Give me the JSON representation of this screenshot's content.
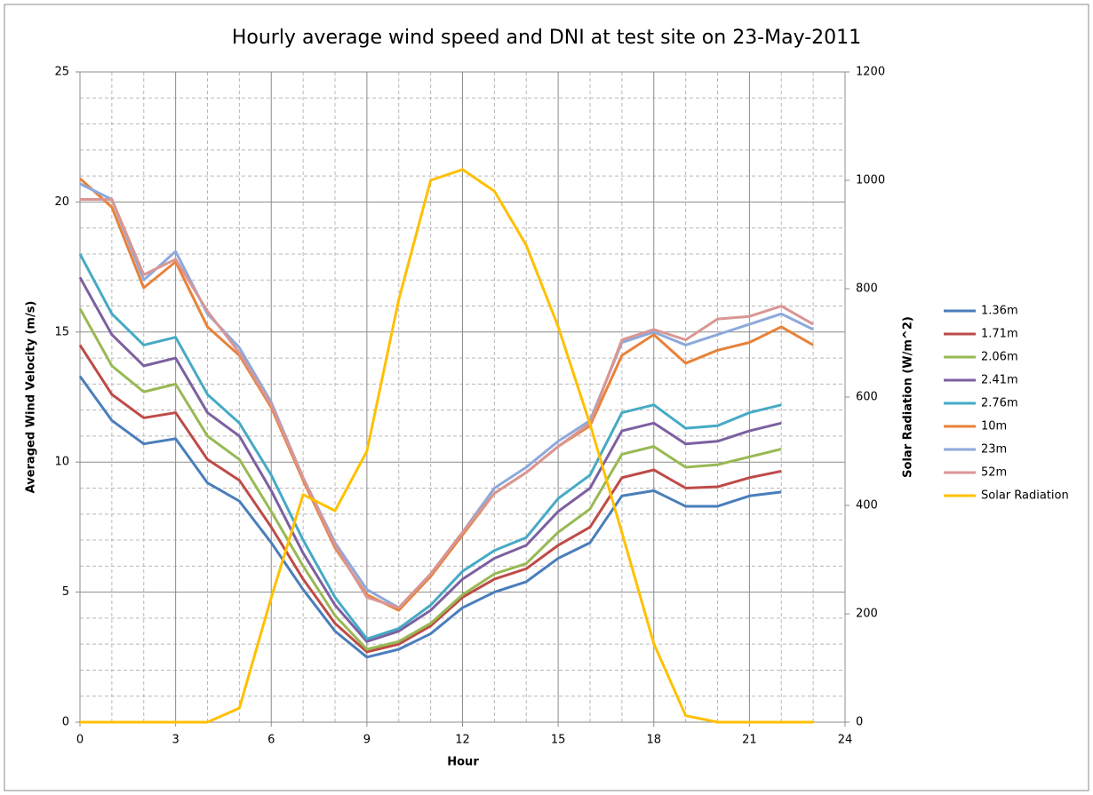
{
  "chart_data": {
    "type": "line",
    "title": "Hourly average wind speed and DNI at test site on 23-May-2011",
    "x_label": "Hour",
    "y_label": "Averaged Wind Velocity (m/s)",
    "y2_label": "Solar Radiation (W/m^2)",
    "x": [
      0,
      1,
      2,
      3,
      4,
      5,
      6,
      7,
      8,
      9,
      10,
      11,
      12,
      13,
      14,
      15,
      16,
      17,
      18,
      19,
      20,
      21,
      22,
      23
    ],
    "xlim": [
      0,
      24
    ],
    "xticks": [
      0,
      3,
      6,
      9,
      12,
      15,
      18,
      21,
      24
    ],
    "ylim": [
      0,
      25
    ],
    "yticks": [
      0,
      5,
      10,
      15,
      20,
      25
    ],
    "y2lim": [
      0,
      1200
    ],
    "y2ticks": [
      0,
      200,
      400,
      600,
      800,
      1000,
      1200
    ],
    "grid": true,
    "legend": "right",
    "series": [
      {
        "name": "1.36m",
        "color": "#4a7ebb",
        "values": [
          13.3,
          11.6,
          10.7,
          10.9,
          9.2,
          8.5,
          6.9,
          5.1,
          3.5,
          2.5,
          2.8,
          3.4,
          4.4,
          5.0,
          5.4,
          6.3,
          6.9,
          8.7,
          8.9,
          8.3,
          8.3,
          8.7,
          8.85,
          null
        ]
      },
      {
        "name": "1.71m",
        "color": "#be4b48",
        "values": [
          14.5,
          12.6,
          11.7,
          11.9,
          10.1,
          9.3,
          7.5,
          5.5,
          3.8,
          2.7,
          3.0,
          3.7,
          4.8,
          5.5,
          5.9,
          6.8,
          7.5,
          9.4,
          9.7,
          9.0,
          9.05,
          9.4,
          9.65,
          null
        ]
      },
      {
        "name": "2.06m",
        "color": "#98b954",
        "values": [
          15.9,
          13.7,
          12.7,
          13.0,
          11.0,
          10.1,
          8.1,
          6.0,
          4.1,
          2.8,
          3.1,
          3.8,
          4.9,
          5.7,
          6.1,
          7.3,
          8.2,
          10.3,
          10.6,
          9.8,
          9.9,
          10.2,
          10.5,
          null
        ]
      },
      {
        "name": "2.41m",
        "color": "#7d60a0",
        "values": [
          17.1,
          14.9,
          13.7,
          14.0,
          11.9,
          11.0,
          8.9,
          6.5,
          4.5,
          3.1,
          3.5,
          4.3,
          5.5,
          6.3,
          6.8,
          8.1,
          9.0,
          11.2,
          11.5,
          10.7,
          10.8,
          11.2,
          11.5,
          null
        ]
      },
      {
        "name": "2.76m",
        "color": "#46aac5",
        "values": [
          18.0,
          15.7,
          14.5,
          14.8,
          12.6,
          11.5,
          9.5,
          7.0,
          4.8,
          3.2,
          3.6,
          4.5,
          5.8,
          6.6,
          7.1,
          8.6,
          9.5,
          11.9,
          12.2,
          11.3,
          11.4,
          11.9,
          12.2,
          null
        ]
      },
      {
        "name": "10m",
        "color": "#e8823a",
        "values": [
          20.9,
          19.8,
          16.7,
          17.7,
          15.2,
          14.1,
          12.1,
          9.3,
          6.7,
          4.9,
          4.3,
          5.6,
          7.2,
          8.8,
          9.6,
          10.6,
          11.4,
          14.1,
          14.9,
          13.8,
          14.3,
          14.6,
          15.2,
          14.5
        ]
      },
      {
        "name": "23m",
        "color": "#8da9db",
        "values": [
          20.7,
          20.1,
          17.0,
          18.1,
          15.7,
          14.4,
          12.3,
          9.4,
          6.9,
          5.1,
          4.4,
          5.7,
          7.3,
          9.0,
          9.8,
          10.8,
          11.6,
          14.6,
          15.0,
          14.5,
          14.9,
          15.3,
          15.7,
          15.1
        ]
      },
      {
        "name": "52m",
        "color": "#d99694",
        "values": [
          20.1,
          20.1,
          17.2,
          17.8,
          15.8,
          14.2,
          12.2,
          9.4,
          6.8,
          4.8,
          4.4,
          5.7,
          7.3,
          8.8,
          9.6,
          10.6,
          11.5,
          14.7,
          15.1,
          14.7,
          15.5,
          15.6,
          16.0,
          15.3
        ]
      },
      {
        "name": "Solar Radiation",
        "color": "#ffc000",
        "axis": "y2",
        "values": [
          0,
          0,
          0,
          0,
          0,
          26,
          230,
          420,
          390,
          500,
          780,
          1000,
          1020,
          980,
          880,
          730,
          550,
          350,
          145,
          12,
          0,
          0,
          0,
          0
        ]
      }
    ]
  }
}
